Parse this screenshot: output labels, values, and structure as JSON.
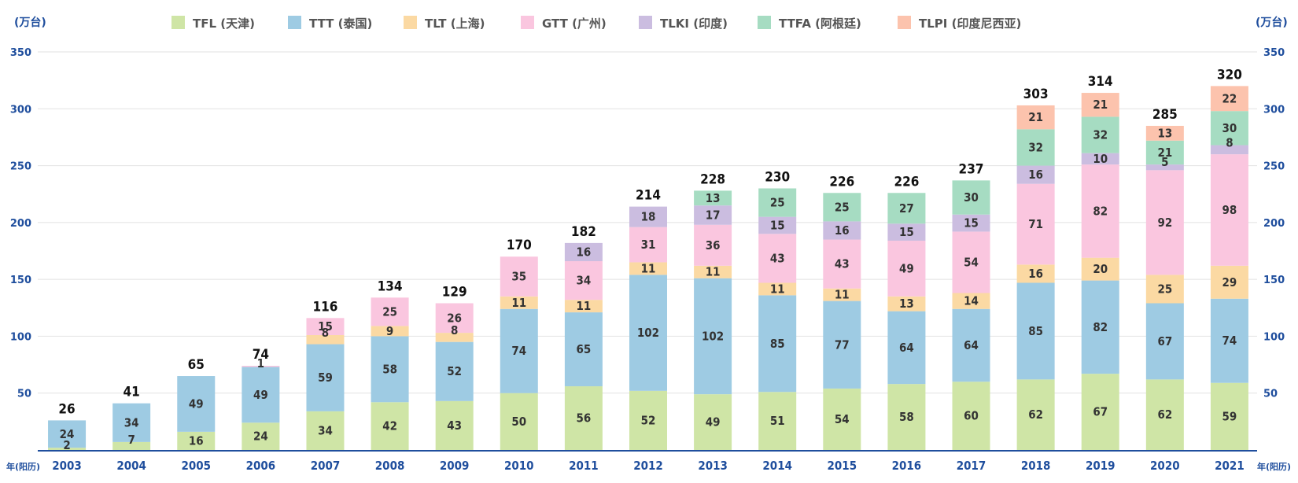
{
  "chart_data": {
    "type": "bar",
    "stacked": true,
    "ylabel_left": "(万台)",
    "ylabel_right": "(万台)",
    "xlabel": "年(阳历)",
    "ylim": [
      0,
      350
    ],
    "yticks": [
      50,
      100,
      150,
      200,
      250,
      300,
      350
    ],
    "grid": true,
    "legend_position": "top",
    "categories": [
      "2003",
      "2004",
      "2005",
      "2006",
      "2007",
      "2008",
      "2009",
      "2010",
      "2011",
      "2012",
      "2013",
      "2014",
      "2015",
      "2016",
      "2017",
      "2018",
      "2019",
      "2020",
      "2021"
    ],
    "series": [
      {
        "name": "TFL (天津)",
        "color": "#cfe5a6",
        "values": [
          2,
          7,
          16,
          24,
          34,
          42,
          43,
          50,
          56,
          52,
          49,
          51,
          54,
          58,
          60,
          62,
          67,
          62,
          59
        ]
      },
      {
        "name": "TTT (泰国)",
        "color": "#9ecbe3",
        "values": [
          24,
          34,
          49,
          49,
          59,
          58,
          52,
          74,
          65,
          102,
          102,
          85,
          77,
          64,
          64,
          85,
          82,
          67,
          74
        ]
      },
      {
        "name": "TLT (上海)",
        "color": "#fbd9a3",
        "values": [
          null,
          null,
          null,
          null,
          8,
          9,
          8,
          11,
          11,
          11,
          11,
          11,
          11,
          13,
          14,
          16,
          20,
          25,
          29
        ]
      },
      {
        "name": "GTT (广州)",
        "color": "#fac6df",
        "values": [
          null,
          null,
          null,
          1,
          15,
          25,
          26,
          35,
          34,
          31,
          36,
          43,
          43,
          49,
          54,
          71,
          82,
          92,
          98
        ]
      },
      {
        "name": "TLKI (印度)",
        "color": "#cbbde0",
        "values": [
          null,
          null,
          null,
          null,
          null,
          null,
          null,
          null,
          16,
          18,
          17,
          15,
          16,
          15,
          15,
          16,
          10,
          5,
          8
        ]
      },
      {
        "name": "TTFA (阿根廷)",
        "color": "#a6dcc2",
        "values": [
          null,
          null,
          null,
          null,
          null,
          null,
          null,
          null,
          null,
          null,
          13,
          25,
          25,
          27,
          30,
          32,
          32,
          21,
          30
        ]
      },
      {
        "name": "TLPI (印度尼西亚)",
        "color": "#fcc3ad",
        "values": [
          null,
          null,
          null,
          null,
          null,
          null,
          null,
          null,
          null,
          null,
          null,
          null,
          null,
          null,
          null,
          21,
          21,
          13,
          22
        ]
      }
    ],
    "totals": [
      26,
      41,
      65,
      74,
      116,
      134,
      129,
      170,
      182,
      214,
      228,
      230,
      226,
      226,
      237,
      303,
      314,
      285,
      320
    ]
  }
}
